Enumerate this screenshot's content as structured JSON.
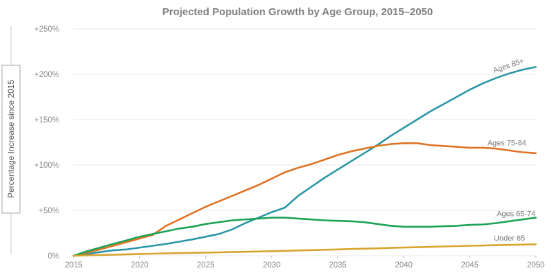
{
  "chart_data": {
    "type": "line",
    "title": "Projected Population Growth by Age Group, 2015–2050",
    "xlabel": "",
    "ylabel": "Percentage Increase since 2015",
    "xlim": [
      2015,
      2050
    ],
    "ylim": [
      0,
      250
    ],
    "x_ticks": [
      2015,
      2020,
      2025,
      2030,
      2035,
      2040,
      2045,
      2050
    ],
    "y_ticks": [
      {
        "value": 0,
        "label": "0%"
      },
      {
        "value": 50,
        "label": "+50%"
      },
      {
        "value": 100,
        "label": "+100%"
      },
      {
        "value": 150,
        "label": "+150%"
      },
      {
        "value": 200,
        "label": "+200%"
      },
      {
        "value": 250,
        "label": "+250%"
      }
    ],
    "grid": true,
    "legend": "none",
    "x": [
      2015,
      2016,
      2017,
      2018,
      2019,
      2020,
      2021,
      2022,
      2023,
      2024,
      2025,
      2026,
      2027,
      2028,
      2029,
      2030,
      2031,
      2032,
      2033,
      2034,
      2035,
      2036,
      2037,
      2038,
      2039,
      2040,
      2041,
      2042,
      2043,
      2044,
      2045,
      2046,
      2047,
      2048,
      2049,
      2050
    ],
    "series": [
      {
        "name": "Ages 85+",
        "color": "#2a97a6",
        "label_angle": -19,
        "values": [
          0,
          2,
          4,
          6,
          7,
          9,
          11,
          13,
          15.5,
          18,
          21,
          24,
          29,
          36,
          42,
          48,
          53,
          66,
          76,
          86,
          95,
          104,
          113,
          122,
          132,
          141,
          150,
          159,
          167,
          175,
          183,
          190,
          196,
          201,
          205,
          208
        ]
      },
      {
        "name": "Ages 75-84",
        "color": "#e07325",
        "label_angle": 0,
        "values": [
          0,
          3.5,
          7,
          11,
          15,
          19,
          23,
          33,
          40,
          47,
          54,
          60,
          66,
          72,
          78,
          85,
          92,
          97,
          101,
          106,
          111,
          115,
          118,
          121,
          123,
          124,
          124,
          122,
          121,
          120,
          119,
          119,
          118,
          116,
          114,
          113
        ]
      },
      {
        "name": "Ages 65-74",
        "color": "#1ca354",
        "label_angle": 0,
        "values": [
          0,
          5,
          9,
          13,
          17,
          21,
          24,
          27,
          30,
          32,
          35,
          37,
          39,
          40,
          41,
          42,
          42,
          41,
          40,
          39,
          38.5,
          38,
          37,
          35,
          33,
          32,
          32,
          32,
          32.5,
          33,
          34,
          34.5,
          36,
          38,
          40,
          42
        ]
      },
      {
        "name": "Under 65",
        "color": "#d7a42c",
        "label_angle": 0,
        "values": [
          0,
          0.4,
          0.8,
          1.2,
          1.6,
          2,
          2.3,
          2.6,
          2.9,
          3.2,
          3.5,
          3.8,
          4.1,
          4.4,
          4.7,
          5,
          5.4,
          5.8,
          6.2,
          6.6,
          7,
          7.4,
          7.8,
          8.2,
          8.6,
          9,
          9.4,
          9.8,
          10.2,
          10.6,
          11,
          11.3,
          11.7,
          12,
          12.3,
          12.6
        ]
      }
    ]
  }
}
